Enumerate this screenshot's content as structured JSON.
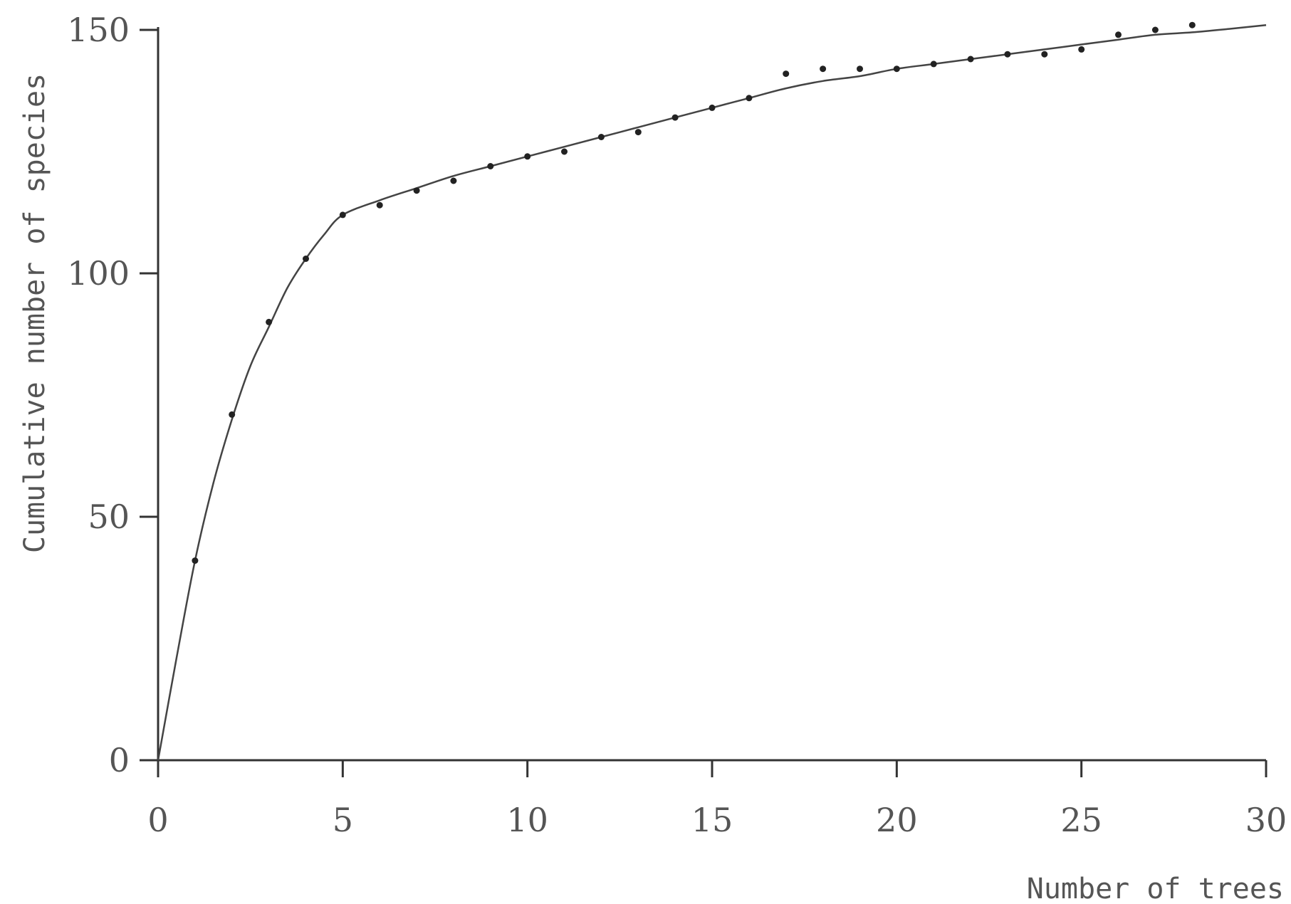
{
  "chart_data": {
    "type": "scatter",
    "title": "",
    "xlabel": "Number of trees",
    "ylabel": "Cumulative number of species",
    "xlim": [
      0,
      30
    ],
    "ylim": [
      0,
      150
    ],
    "x_ticks": [
      0,
      5,
      10,
      15,
      20,
      25,
      30
    ],
    "y_ticks": [
      0,
      50,
      100,
      150
    ],
    "x_tick_labels": [
      "0",
      "5",
      "10",
      "15",
      "20",
      "25",
      "30"
    ],
    "y_tick_labels": [
      "0",
      "50",
      "100",
      "150"
    ],
    "grid": false,
    "legend": "none",
    "series": [
      {
        "kind": "points",
        "x": [
          1,
          2,
          3,
          4,
          5,
          6,
          7,
          8,
          9,
          10,
          11,
          12,
          13,
          14,
          15,
          16,
          17,
          18,
          19,
          20,
          21,
          22,
          23,
          24,
          25,
          26,
          27,
          28
        ],
        "y": [
          41,
          71,
          90,
          103,
          112,
          114,
          117,
          119,
          122,
          124,
          125,
          128,
          129,
          132,
          134,
          136,
          141,
          142,
          142,
          142,
          143,
          144,
          145,
          145,
          146,
          149,
          150,
          151
        ]
      },
      {
        "kind": "fitted-curve",
        "x": [
          0,
          0.5,
          1,
          1.5,
          2,
          2.5,
          3,
          3.5,
          4,
          4.5,
          5,
          6,
          7,
          8,
          9,
          10,
          11,
          12,
          13,
          14,
          15,
          16,
          17,
          18,
          19,
          20,
          21,
          22,
          23,
          24,
          25,
          26,
          27,
          28,
          29,
          30
        ],
        "y": [
          0,
          21,
          41,
          57,
          70,
          81,
          89,
          97,
          103,
          108,
          112,
          115,
          117.5,
          120,
          122,
          124,
          126,
          128,
          130,
          132,
          134,
          136,
          138,
          139.5,
          140.5,
          142,
          143,
          144,
          145,
          146,
          147,
          148,
          149,
          149.5,
          150.2,
          151
        ]
      }
    ]
  }
}
